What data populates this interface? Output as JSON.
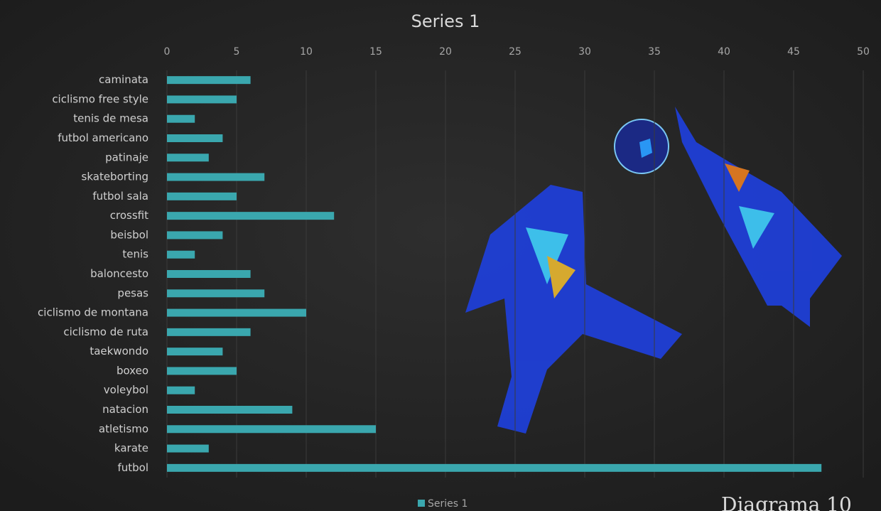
{
  "chart_data": {
    "type": "bar",
    "orientation": "horizontal",
    "title": "Series 1",
    "categories": [
      "caminata",
      "ciclismo free style",
      "tenis de mesa",
      "futbol americano",
      "patinaje",
      "skateborting",
      "futbol sala",
      "crossfit",
      "beisbol",
      "tenis",
      "baloncesto",
      "pesas",
      "ciclismo de montana",
      "ciclismo de ruta",
      "taekwondo",
      "boxeo",
      "voleybol",
      "natacion",
      "atletismo",
      "karate",
      "futbol"
    ],
    "series": [
      {
        "name": "Series 1",
        "color": "#3aa7ae",
        "values": [
          6,
          5,
          2,
          4,
          3,
          7,
          5,
          12,
          4,
          2,
          6,
          7,
          10,
          6,
          4,
          5,
          2,
          9,
          15,
          3,
          47
        ]
      }
    ],
    "xlim": [
      0,
      50
    ],
    "xticks": [
      0,
      5,
      10,
      15,
      20,
      25,
      30,
      35,
      40,
      45,
      50
    ],
    "grid": true,
    "legend": "bottom",
    "annotation": "Diagrama 10"
  }
}
